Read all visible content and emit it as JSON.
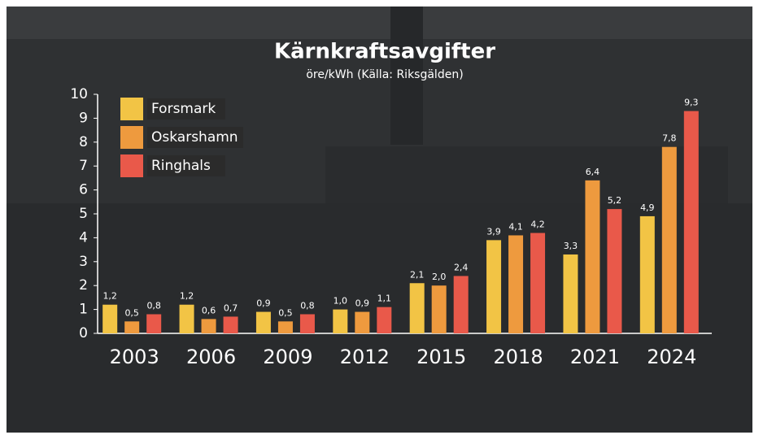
{
  "chart_data": {
    "type": "bar",
    "title": "Kärnkraftsavgifter",
    "subtitle": "öre/kWh (Källa: Riksgälden)",
    "categories": [
      "2003",
      "2006",
      "2009",
      "2012",
      "2015",
      "2018",
      "2021",
      "2024"
    ],
    "series": [
      {
        "name": "Forsmark",
        "color": "#f2c445",
        "values": [
          1.2,
          1.2,
          0.9,
          1.0,
          2.1,
          3.9,
          3.3,
          4.9
        ],
        "value_labels": [
          "1,2",
          "1,2",
          "0,9",
          "1,0",
          "2,1",
          "3,9",
          "3,3",
          "4,9"
        ]
      },
      {
        "name": "Oskarshamn",
        "color": "#ee9a3e",
        "values": [
          0.5,
          0.6,
          0.5,
          0.9,
          2.0,
          4.1,
          6.4,
          7.8
        ],
        "value_labels": [
          "0,5",
          "0,6",
          "0,5",
          "0,9",
          "2,0",
          "4,1",
          "6,4",
          "7,8"
        ]
      },
      {
        "name": "Ringhals",
        "color": "#e9594a",
        "values": [
          0.8,
          0.7,
          0.8,
          1.1,
          2.4,
          4.2,
          5.2,
          9.3
        ],
        "value_labels": [
          "0,8",
          "0,7",
          "0,8",
          "1,1",
          "2,4",
          "4,2",
          "5,2",
          "9,3"
        ]
      }
    ],
    "ylim": [
      0,
      10
    ],
    "yticks": [
      0,
      1,
      2,
      3,
      4,
      5,
      6,
      7,
      8,
      9,
      10
    ],
    "grid": false,
    "legend": "top-left"
  }
}
